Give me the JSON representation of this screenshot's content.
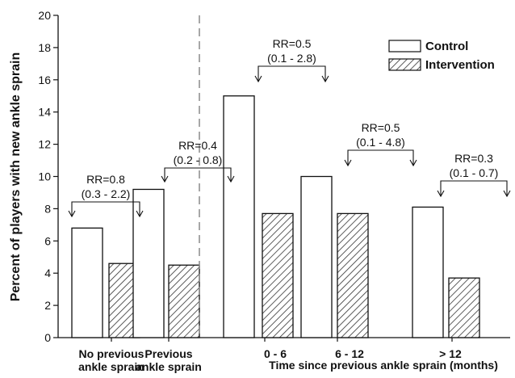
{
  "chart_data": {
    "type": "bar",
    "ylabel": "Percent of players with new ankle sprain",
    "xlabel": "Time since previous ankle sprain (months)",
    "ylim": [
      0,
      20
    ],
    "yticks": [
      0,
      2,
      4,
      6,
      8,
      10,
      12,
      14,
      16,
      18,
      20
    ],
    "categories": [
      [
        "No previous",
        "ankle sprain"
      ],
      [
        "Previous",
        "ankle sprain"
      ],
      [
        "0 - 6"
      ],
      [
        "6 - 12"
      ],
      [
        "> 12"
      ]
    ],
    "series": [
      {
        "name": "Control",
        "values": [
          6.8,
          9.2,
          15.0,
          10.0,
          8.1
        ],
        "pattern": "open",
        "color": "#ffffff"
      },
      {
        "name": "Intervention",
        "values": [
          4.6,
          4.5,
          7.7,
          7.7,
          3.7
        ],
        "pattern": "hatched",
        "color": "#555555"
      }
    ],
    "annotations": [
      {
        "rr": "RR=0.8",
        "ci": "(0.3 - 2.2)"
      },
      {
        "rr": "RR=0.4",
        "ci": "(0.2 - 0.8)"
      },
      {
        "rr": "RR=0.5",
        "ci": "(0.1 - 2.8)"
      },
      {
        "rr": "RR=0.5",
        "ci": "(0.1 - 4.8)"
      },
      {
        "rr": "RR=0.3",
        "ci": "(0.1 - 0.7)"
      }
    ],
    "divider": "dashed vertical line between the 2nd and 3rd category groups",
    "legend": {
      "position": "top-right"
    },
    "grid": false
  }
}
